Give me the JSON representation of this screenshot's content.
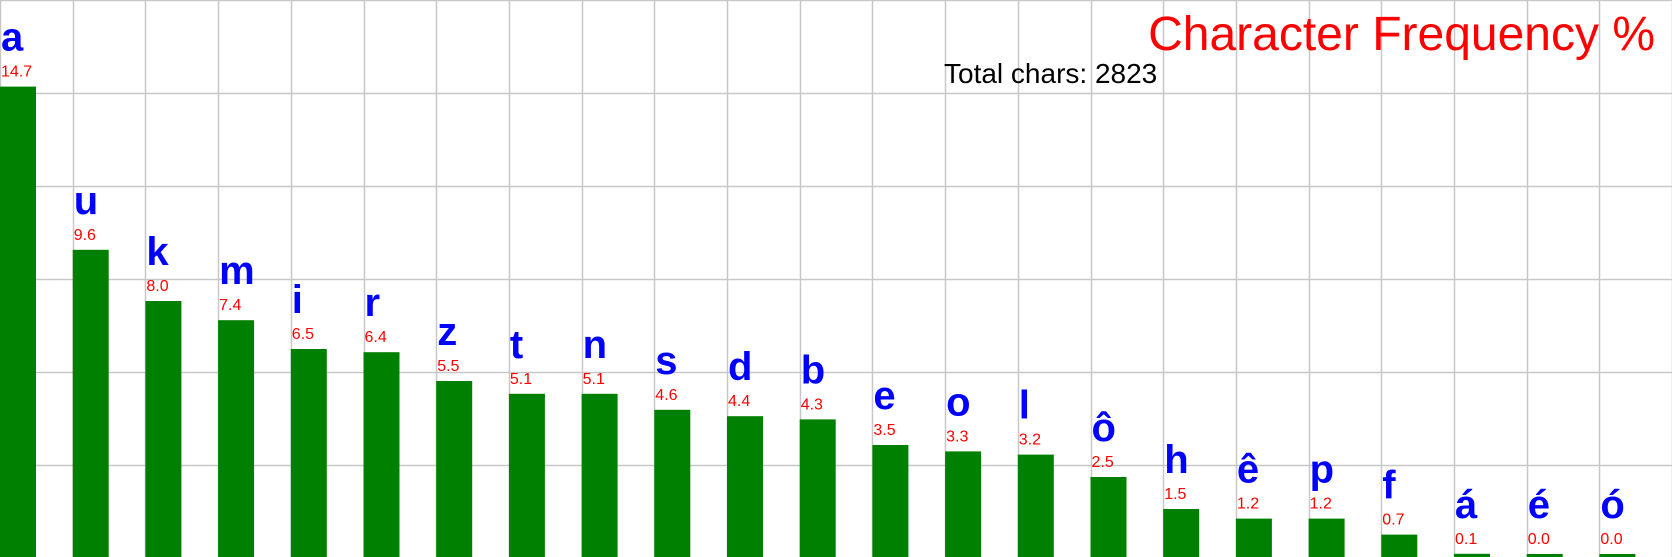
{
  "chart_data": {
    "type": "bar",
    "title": "Character Frequency %",
    "subtitle": "Total chars: 2823",
    "categories": [
      "a",
      "u",
      "k",
      "m",
      "i",
      "r",
      "z",
      "t",
      "n",
      "s",
      "d",
      "b",
      "e",
      "o",
      "l",
      "ô",
      "h",
      "ê",
      "p",
      "f",
      "á",
      "é",
      "ó"
    ],
    "values": [
      14.7,
      9.6,
      8.0,
      7.4,
      6.5,
      6.4,
      5.5,
      5.1,
      5.1,
      4.6,
      4.4,
      4.3,
      3.5,
      3.3,
      3.2,
      2.5,
      1.5,
      1.2,
      1.2,
      0.7,
      0.1,
      0.0,
      0.0
    ],
    "value_labels": [
      "14.7",
      "9.6",
      "8.0",
      "7.4",
      "6.5",
      "6.4",
      "5.5",
      "5.1",
      "5.1",
      "4.6",
      "4.4",
      "4.3",
      "3.5",
      "3.3",
      "3.2",
      "2.5",
      "1.5",
      "1.2",
      "1.2",
      "0.7",
      "0.1",
      "0.0",
      "0.0"
    ],
    "xlabel": "",
    "ylabel": "",
    "grid": true,
    "colors": {
      "bar": "#008000",
      "title": "#ff0000",
      "category_label": "#0000ff",
      "value_label": "#ff0000",
      "grid": "#c8c8c8"
    }
  }
}
